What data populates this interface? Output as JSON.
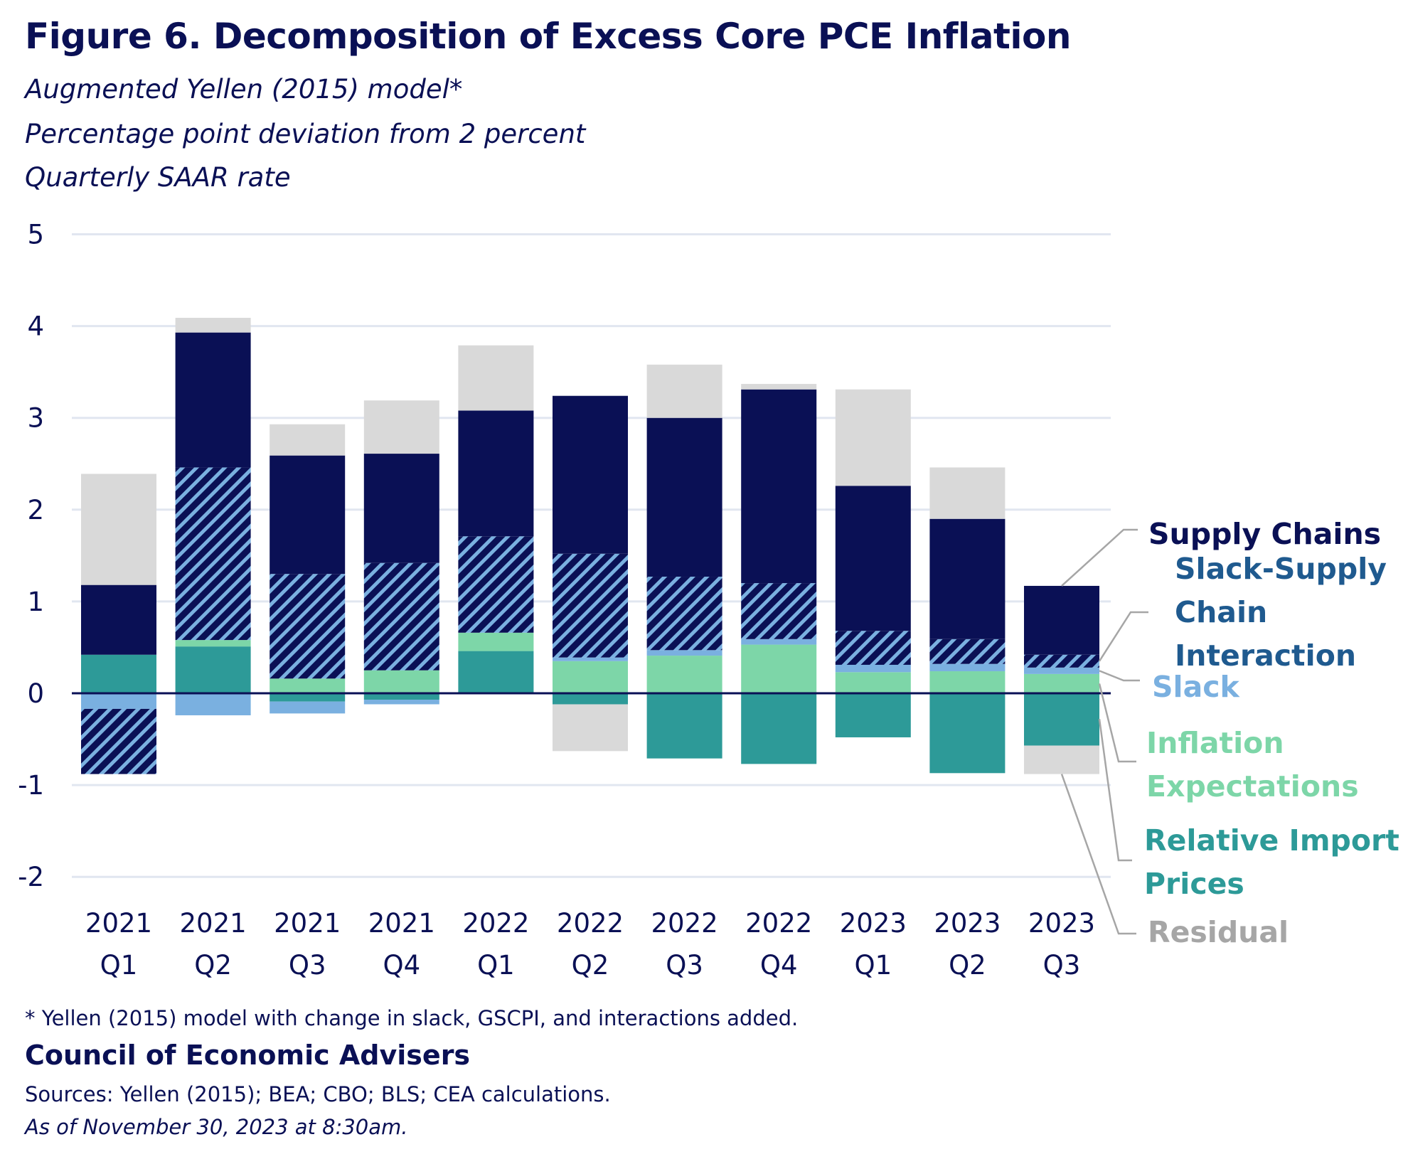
{
  "header": {
    "title": "Figure 6. Decomposition of Excess Core PCE Inflation",
    "subtitles": [
      "Augmented Yellen (2015) model*",
      "Percentage point deviation from 2 percent",
      "Quarterly SAAR rate"
    ]
  },
  "footer": {
    "note": "* Yellen (2015) model with change in slack, GSCPI, and interactions added.",
    "organization": "Council of Economic Advisers",
    "sources": "Sources: Yellen (2015); BEA; CBO; BLS; CEA calculations.",
    "as_of": "As of November 30, 2023 at 8:30am."
  },
  "chart_data": {
    "type": "bar",
    "stacked": true,
    "title": "Figure 6. Decomposition of Excess Core PCE Inflation",
    "xlabel": "",
    "ylabel": "Percentage point deviation from 2 percent",
    "ylim": [
      -2,
      5
    ],
    "yticks": [
      5,
      4,
      3,
      2,
      1,
      0,
      -1,
      -2
    ],
    "grid": true,
    "legend_placement": "right (direct labels)",
    "categories": [
      {
        "year": "2021",
        "quarter": "Q1"
      },
      {
        "year": "2021",
        "quarter": "Q2"
      },
      {
        "year": "2021",
        "quarter": "Q3"
      },
      {
        "year": "2021",
        "quarter": "Q4"
      },
      {
        "year": "2022",
        "quarter": "Q1"
      },
      {
        "year": "2022",
        "quarter": "Q2"
      },
      {
        "year": "2022",
        "quarter": "Q3"
      },
      {
        "year": "2022",
        "quarter": "Q4"
      },
      {
        "year": "2023",
        "quarter": "Q1"
      },
      {
        "year": "2023",
        "quarter": "Q2"
      },
      {
        "year": "2023",
        "quarter": "Q3"
      }
    ],
    "series": [
      {
        "key": "rip",
        "name": "Relative Import Prices",
        "label_lines": [
          "Relative Import",
          "Prices"
        ],
        "color": "#2D9A98",
        "label_color": "#2D9A98",
        "pattern": "solid",
        "values": [
          0.42,
          0.51,
          -0.09,
          -0.07,
          0.46,
          -0.12,
          -0.71,
          -0.77,
          -0.48,
          -0.87,
          -0.57
        ]
      },
      {
        "key": "ie",
        "name": "Inflation Expectations",
        "label_lines": [
          "Inflation",
          "Expectations"
        ],
        "color": "#7DD6A8",
        "label_color": "#7DD6A8",
        "pattern": "solid",
        "values": [
          0.0,
          0.07,
          0.16,
          0.25,
          0.2,
          0.35,
          0.41,
          0.53,
          0.23,
          0.24,
          0.21
        ]
      },
      {
        "key": "slack",
        "name": "Slack",
        "label_lines": [
          "Slack"
        ],
        "color": "#7AB0E0",
        "label_color": "#7AB0E0",
        "pattern": "solid",
        "values": [
          -0.17,
          -0.24,
          -0.13,
          -0.05,
          0.0,
          0.04,
          0.06,
          0.06,
          0.08,
          0.08,
          0.07
        ]
      },
      {
        "key": "int",
        "name": "Slack-Supply Chain Interaction",
        "label_lines": [
          "Slack-Supply",
          "Chain",
          "Interaction"
        ],
        "color": "#0A1055",
        "label_color": "#1F5A8F",
        "pattern": "hatch",
        "values": [
          -0.71,
          1.88,
          1.14,
          1.17,
          1.05,
          1.13,
          0.8,
          0.61,
          0.37,
          0.27,
          0.14
        ]
      },
      {
        "key": "sc",
        "name": "Supply Chains",
        "label_lines": [
          "Supply Chains"
        ],
        "color": "#0A1055",
        "label_color": "#0A1055",
        "pattern": "solid",
        "values": [
          0.76,
          1.47,
          1.29,
          1.19,
          1.37,
          1.72,
          1.73,
          2.11,
          1.58,
          1.31,
          0.75
        ]
      },
      {
        "key": "resid",
        "name": "Residual",
        "label_lines": [
          "Residual"
        ],
        "color": "#D9D9D9",
        "label_color": "#A6A6A6",
        "pattern": "solid",
        "values": [
          1.21,
          0.16,
          0.34,
          0.58,
          0.71,
          -0.51,
          0.58,
          0.06,
          1.05,
          0.56,
          -0.31
        ]
      }
    ],
    "colors": {
      "axis_text": "#0A1055",
      "gridline": "#E1E6F0",
      "zero_line": "#0A1055",
      "hatch_stripe": "#7AB0E0",
      "connector": "#A6A6A6"
    }
  }
}
